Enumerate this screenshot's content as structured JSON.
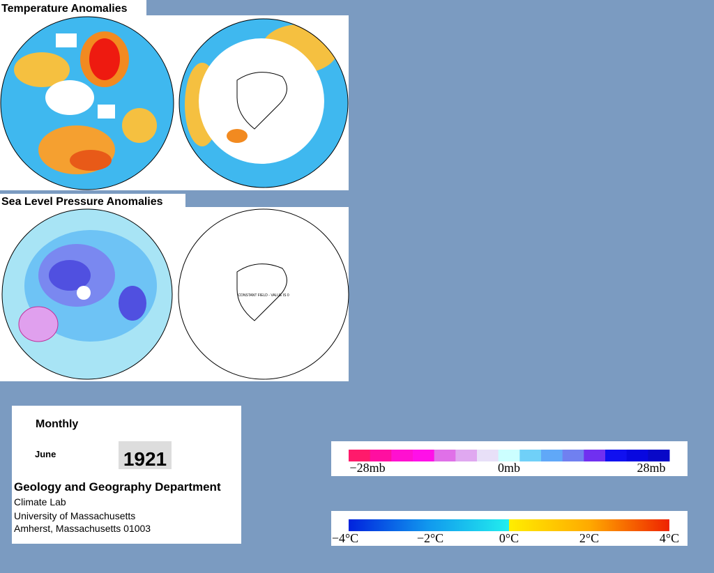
{
  "temperature": {
    "title": "Temperature Anomalies"
  },
  "pressure": {
    "title": "Sea Level Pressure Anomalies",
    "note": "CONSTANT FIELD - VALUE IS 0"
  },
  "info": {
    "period": "Monthly",
    "month": "June",
    "year": "1921",
    "department": "Geology and Geography Department",
    "lines": [
      "Climate Lab",
      "University of Massachusetts",
      "Amherst, Massachusetts 01003"
    ]
  },
  "legends": {
    "pressure": [
      "−28mb",
      "0mb",
      "28mb"
    ],
    "temperature": [
      "−4°C",
      "−2°C",
      "0°C",
      "2°C",
      "4°C"
    ]
  }
}
